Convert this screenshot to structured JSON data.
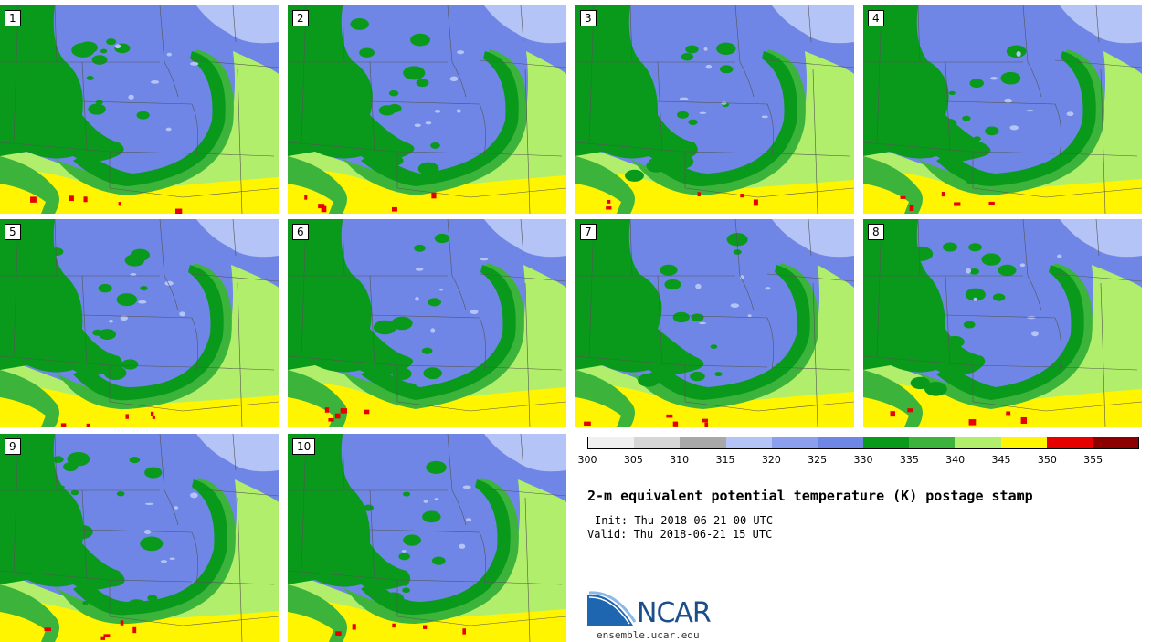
{
  "panels": [
    {
      "label": "1"
    },
    {
      "label": "2"
    },
    {
      "label": "3"
    },
    {
      "label": "4"
    },
    {
      "label": "5"
    },
    {
      "label": "6"
    },
    {
      "label": "7"
    },
    {
      "label": "8"
    },
    {
      "label": "9"
    },
    {
      "label": "10"
    }
  ],
  "colorbar": {
    "colors": [
      "#f0f0f0",
      "#d6d6d6",
      "#a8a8a8",
      "#b4c4f6",
      "#8aa0ee",
      "#6f86e6",
      "#099a1c",
      "#3cb43c",
      "#b0ee6c",
      "#fff500",
      "#e60000",
      "#8c0000"
    ],
    "ticks": [
      "300",
      "305",
      "310",
      "315",
      "320",
      "325",
      "330",
      "335",
      "340",
      "345",
      "350",
      "355"
    ]
  },
  "title": "2-m equivalent potential temperature (K) postage stamp",
  "init": "Init: Thu 2018-06-21 00 UTC",
  "valid": "Valid: Thu 2018-06-21 15 UTC",
  "logo": {
    "name": "NCAR",
    "url": "ensemble.ucar.edu"
  }
}
